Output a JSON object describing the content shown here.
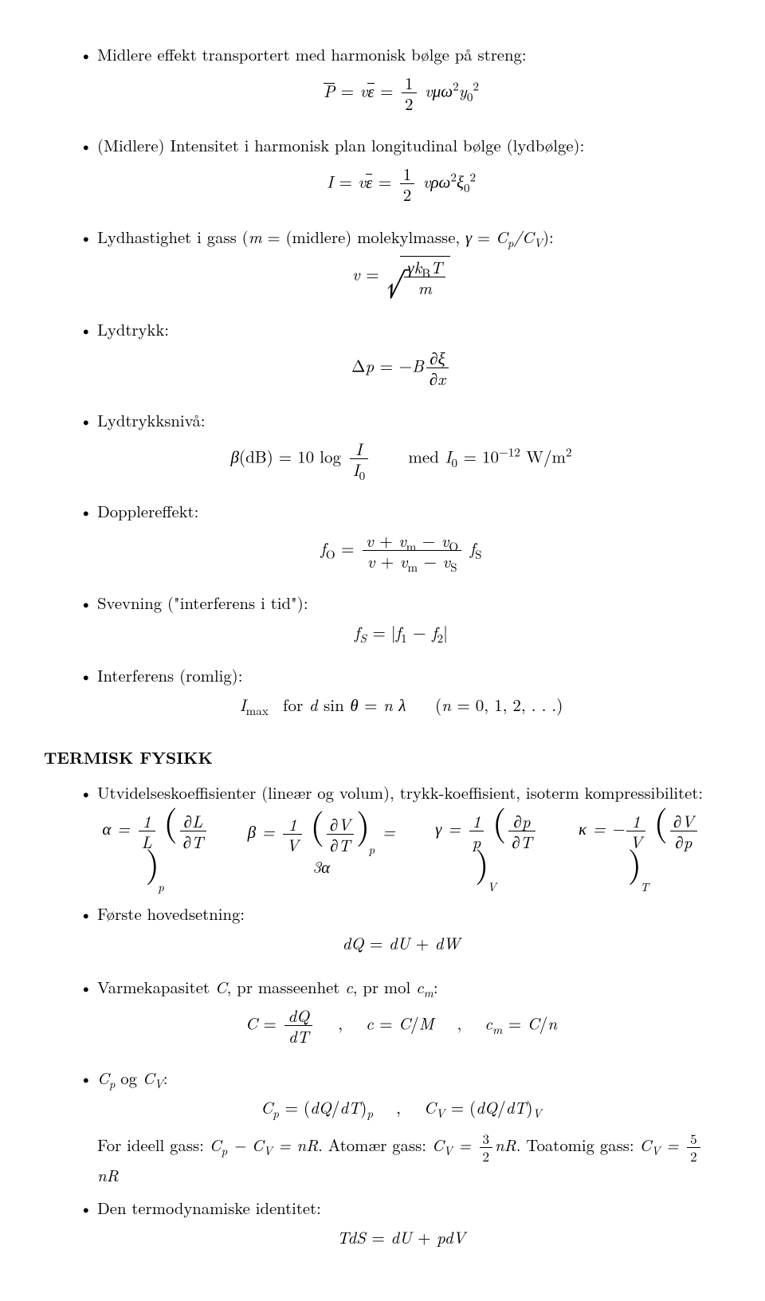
{
  "items": [
    {
      "text": "Midlere effekt transportert med harmonisk bølge på streng:",
      "eq": "P̄ = vε̄ = ½ v μ ω² y₀²",
      "eq_html": "<span class='overline'>P</span> <span class='upright'>=</span> v<span class='overline'>ε</span> <span class='upright'>=</span> <span class='frac'><span class='num'><span class='upright'>1</span></span><span class='den'><span class='upright'>2</span></span></span> vμω<sup><span class='upright'>2</span></sup>y<sub><span class='upright'>0</span></sub><sup><span class='upright'>2</span></sup>"
    },
    {
      "text": "(Midlere) Intensitet i harmonisk plan longitudinal bølge (lydbølge):",
      "eq_html": "I <span class='upright'>=</span> v<span class='overline'>ε</span> <span class='upright'>=</span> <span class='frac'><span class='num'><span class='upright'>1</span></span><span class='den'><span class='upright'>2</span></span></span> vρω<sup><span class='upright'>2</span></sup>ξ<sub><span class='upright'>0</span></sub><sup><span class='upright'>2</span></sup>"
    },
    {
      "text": "Lydhastighet i gass (<span class='inline-math'>m</span> = (midlere) molekylmasse, <span class='inline-math'>γ</span> = <span class='inline-math'>C<sub>p</sub>/C<sub>V</sub></span>):",
      "eq_html": "v <span class='upright'>=</span> <span class='radical'><span class='rsign'>√</span><span class='rbody'><span class='frac'><span class='num'>γk<sub><span class='upright'>B</span></sub>T</span><span class='den'>m</span></span></span></span>"
    },
    {
      "text": "Lydtrykk:",
      "eq_html": "<span class='upright'>Δ</span>p <span class='upright'>=</span> <span class='upright'>−</span>B<span class='frac'><span class='num'>∂ξ</span><span class='den'>∂x</span></span>"
    },
    {
      "text": "Lydtrykksnivå:",
      "eq_html": "β<span class='upright'>(dB) = 10 log</span> <span class='frac'><span class='num'>I</span><span class='den'>I<sub><span class='upright'>0</span></sub></span></span> &nbsp;&nbsp;&nbsp; <span class='upright'>med</span> I<sub><span class='upright'>0</span></sub> <span class='upright'>= 10</span><sup><span class='upright'>−12</span></sup> <span class='upright'>W/m</span><sup><span class='upright'>2</span></sup>"
    },
    {
      "text": "Dopplereffekt:",
      "eq_html": "f<sub><span class='upright'>O</span></sub> <span class='upright'>=</span> <span class='frac'><span class='num'>v <span class='upright'>+</span> v<sub><span class='upright'>m</span></sub> <span class='upright'>−</span> v<sub><span class='upright'>O</span></sub></span><span class='den'>v <span class='upright'>+</span> v<sub><span class='upright'>m</span></sub> <span class='upright'>−</span> v<sub><span class='upright'>S</span></sub></span></span> f<sub><span class='upright'>S</span></sub>"
    },
    {
      "text": "Svevning (\"interferens i tid\"):",
      "eq_html": "f<sub><span style='font-style:italic'>S</span></sub> <span class='upright'>= |</span>f<sub><span class='upright'>1</span></sub> <span class='upright'>−</span> f<sub><span class='upright'>2</span></sub><span class='upright'>|</span>"
    },
    {
      "text": "Interferens (romlig):",
      "eq_html": "I<sub><span class='upright'>max</span></sub>&nbsp; <span class='upright'>for</span> d <span class='upright'>sin</span> θ <span class='upright'>=</span> n λ &nbsp;&nbsp; <span class='upright'>(</span>n <span class='upright'>= 0, 1, 2, . . .)</span>"
    }
  ],
  "section_heading": "TERMISK FYSIKK",
  "items2": [
    {
      "text": "Utvidelseskoeffisienter (lineær og volum), trykk-koeffisient, isoterm kompressibilitet:",
      "eqrow": [
        "α <span class='upright'>=</span> <span class='frac'><span class='num'><span class='upright'>1</span></span><span class='den'>L</span></span> <span class='bigparen'>(</span><span class='frac'><span class='num'>∂L</span><span class='den'>∂T</span></span><span class='bigparen'>)</span><sub style='position:relative;top:14px;left:-2px'>p</sub>",
        "β <span class='upright'>=</span> <span class='frac'><span class='num'><span class='upright'>1</span></span><span class='den'>V</span></span> <span class='bigparen'>(</span><span class='frac'><span class='num'>∂V</span><span class='den'>∂T</span></span><span class='bigparen'>)</span><sub style='position:relative;top:14px;left:-2px'>p</sub> <span class='upright'>= 3</span>α",
        "γ <span class='upright'>=</span> <span class='frac'><span class='num'><span class='upright'>1</span></span><span class='den'>p</span></span> <span class='bigparen'>(</span><span class='frac'><span class='num'>∂p</span><span class='den'>∂T</span></span><span class='bigparen'>)</span><sub style='position:relative;top:14px;left:-2px'>V</sub>",
        "κ <span class='upright'>= −</span><span class='frac'><span class='num'><span class='upright'>1</span></span><span class='den'>V</span></span> <span class='bigparen'>(</span><span class='frac'><span class='num'>∂V</span><span class='den'>∂p</span></span><span class='bigparen'>)</span><sub style='position:relative;top:14px;left:-2px'>T</sub>"
      ]
    },
    {
      "text": "Første hovedsetning:",
      "eq_html": "dQ <span class='upright'>=</span> dU <span class='upright'>+</span> dW"
    },
    {
      "text": "Varmekapasitet <span class='inline-math'>C</span>, pr masseenhet <span class='inline-math'>c</span>, pr mol <span class='inline-math'>c<sub>m</sub></span>:",
      "eq_html": "C <span class='upright'>=</span> <span class='frac'><span class='num'>dQ</span><span class='den'>dT</span></span> &nbsp;&nbsp;<span class='upright'>,</span>&nbsp;&nbsp; c <span class='upright'>=</span> C<span class='upright'>/</span>M &nbsp;&nbsp;<span class='upright'>,</span>&nbsp;&nbsp; c<sub>m</sub> <span class='upright'>=</span> C<span class='upright'>/</span>n"
    },
    {
      "text": "<span class='inline-math'>C<sub>p</sub></span> og <span class='inline-math'>C<sub>V</sub></span>:",
      "eq_html": "C<sub>p</sub> <span class='upright'>= (</span>dQ<span class='upright'>/</span>dT<span class='upright'>)</span><sub>p</sub> &nbsp;&nbsp;<span class='upright'>,</span>&nbsp;&nbsp; C<sub>V</sub> <span class='upright'>= (</span>dQ<span class='upright'>/</span>dT<span class='upright'>)</span><sub>V</sub>",
      "after_html": "For ideell gass: <span class='inline-math'>C<sub>p</sub> − C<sub>V</sub> = nR</span>. Atomær gass: <span class='inline-math'>C<sub>V</sub> = </span><span class='frac' style='font-size:17px'><span class='num'>3</span><span class='den'>2</span></span><span class='inline-math'>nR</span>. Toatomig gass: <span class='inline-math'>C<sub>V</sub> = </span><span class='frac' style='font-size:17px'><span class='num'>5</span><span class='den'>2</span></span><span class='inline-math'>nR</span>"
    },
    {
      "text": "Den termodynamiske identitet:",
      "eq_html": "TdS <span class='upright'>=</span> dU <span class='upright'>+</span> pdV"
    }
  ]
}
